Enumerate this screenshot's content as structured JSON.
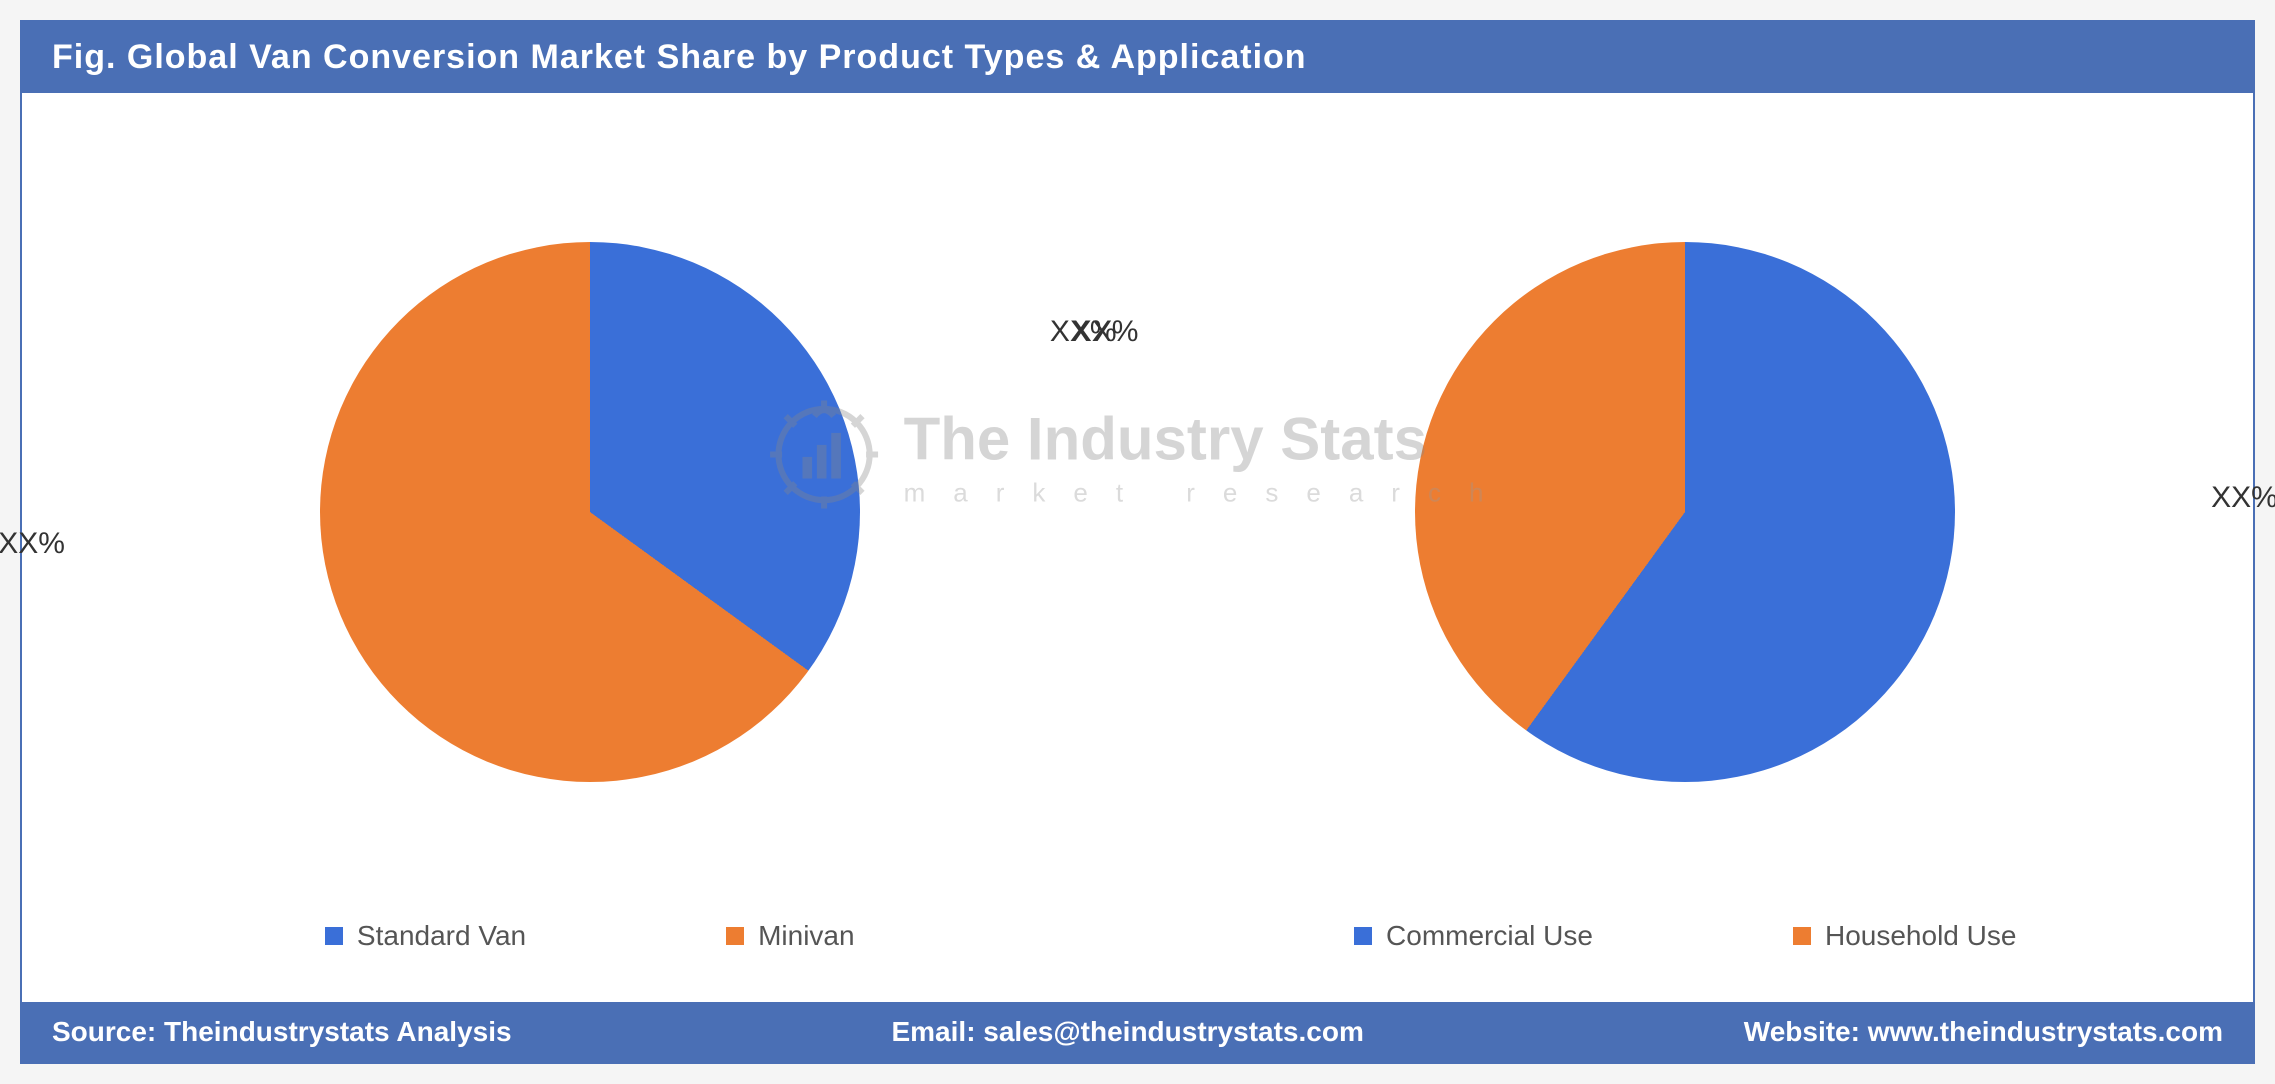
{
  "header": {
    "title": "Fig. Global Van Conversion Market Share by Product Types & Application"
  },
  "colors": {
    "brand_blue": "#4a6fb5",
    "series_blue": "#3a6fd8",
    "series_orange": "#ed7d31",
    "background": "#ffffff",
    "label_text": "#333333",
    "legend_text": "#555555",
    "watermark_text": "#888888"
  },
  "chart_left": {
    "type": "pie",
    "slices": [
      {
        "label": "Standard Van",
        "value": 35,
        "color": "#3a6fd8",
        "display_pct": "XX%"
      },
      {
        "label": "Minivan",
        "value": 65,
        "color": "#ed7d31",
        "display_pct": "XX%"
      }
    ],
    "start_angle_deg": 0,
    "legend": [
      {
        "label": "Standard Van",
        "color": "#3a6fd8"
      },
      {
        "label": "Minivan",
        "color": "#ed7d31"
      }
    ],
    "label_positions": [
      {
        "slice": 0,
        "top_pct": 24,
        "left_pct": 92
      },
      {
        "slice": 1,
        "top_pct": 52,
        "left_pct": -4
      }
    ]
  },
  "chart_right": {
    "type": "pie",
    "slices": [
      {
        "label": "Commercial Use",
        "value": 60,
        "color": "#3a6fd8",
        "display_pct": "XX%"
      },
      {
        "label": "Household Use",
        "value": 40,
        "color": "#ed7d31",
        "display_pct": "XX%"
      }
    ],
    "start_angle_deg": 0,
    "legend": [
      {
        "label": "Commercial Use",
        "color": "#3a6fd8"
      },
      {
        "label": "Household Use",
        "color": "#ed7d31"
      }
    ],
    "label_positions": [
      {
        "slice": 0,
        "top_pct": 46,
        "left_pct": 98
      },
      {
        "slice": 1,
        "top_pct": 24,
        "left_pct": -6
      }
    ]
  },
  "watermark": {
    "title": "The Industry Stats",
    "subtitle": "market research"
  },
  "footer": {
    "source": "Source: Theindustrystats Analysis",
    "email": "Email: sales@theindustrystats.com",
    "website": "Website: www.theindustrystats.com"
  },
  "typography": {
    "header_fontsize": 34,
    "pct_label_fontsize": 30,
    "legend_fontsize": 28,
    "footer_fontsize": 28,
    "watermark_title_fontsize": 60,
    "watermark_sub_fontsize": 26
  }
}
